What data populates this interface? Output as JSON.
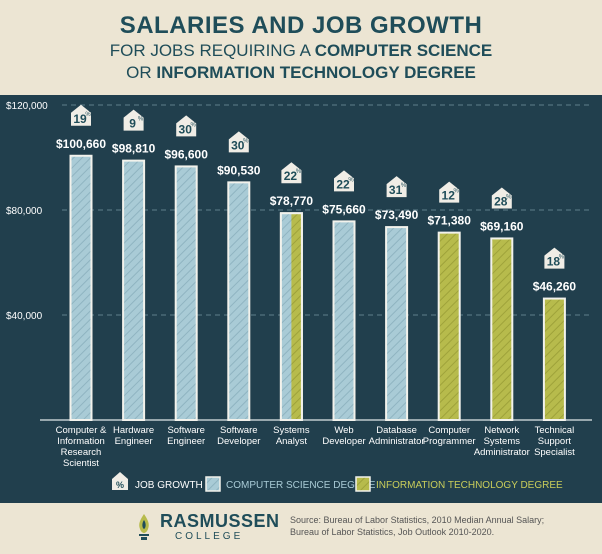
{
  "header": {
    "title": "SALARIES AND JOB GROWTH",
    "subtitle_line1_normal": "FOR JOBS REQUIRING A ",
    "subtitle_line1_bold": "COMPUTER SCIENCE",
    "subtitle_line2_normal": "OR ",
    "subtitle_line2_bold": "INFORMATION TECHNOLOGY DEGREE"
  },
  "colors": {
    "background_panel": "#213f4d",
    "cs_fill": "#a9cbd6",
    "it_fill": "#b7bb4c",
    "bar_outline": "#f2f2ec",
    "badge_fill": "#f0ede6",
    "text_light": "#ffffff",
    "title": "#1f4d59"
  },
  "chart_data": {
    "type": "bar",
    "ylim": [
      0,
      120000
    ],
    "yticks": [
      40000,
      80000,
      120000
    ],
    "ytick_labels": [
      "$40,000",
      "$80,000",
      "$120,000"
    ],
    "grid": true,
    "categories": [
      [
        "Computer &",
        "Information",
        "Research",
        "Scientist"
      ],
      [
        "Hardware",
        "Engineer"
      ],
      [
        "Software",
        "Engineer"
      ],
      [
        "Software",
        "Developer"
      ],
      [
        "Systems",
        "Analyst"
      ],
      [
        "Web",
        "Developer"
      ],
      [
        "Database",
        "Administrator"
      ],
      [
        "Computer",
        "Programmer"
      ],
      [
        "Network",
        "Systems",
        "Administrator"
      ],
      [
        "Technical",
        "Support",
        "Specialist"
      ]
    ],
    "values": [
      100660,
      98810,
      96600,
      90530,
      78770,
      75660,
      73490,
      71380,
      69160,
      46260
    ],
    "value_labels": [
      "$100,660",
      "$98,810",
      "$96,600",
      "$90,530",
      "$78,770",
      "$75,660",
      "$73,490",
      "$71,380",
      "$69,160",
      "$46,260"
    ],
    "job_growth_percent": [
      19,
      9,
      30,
      30,
      22,
      22,
      31,
      12,
      28,
      18
    ],
    "degree": [
      "cs",
      "cs",
      "cs",
      "cs",
      "both",
      "cs",
      "cs",
      "it",
      "it",
      "it"
    ],
    "legend": [
      {
        "key": "growth",
        "label": "JOB GROWTH",
        "symbol": "%"
      },
      {
        "key": "cs",
        "label": "COMPUTER SCIENCE DEGREE"
      },
      {
        "key": "it",
        "label": "INFORMATION TECHNOLOGY DEGREE"
      }
    ]
  },
  "footer": {
    "logo_main": "RASMUSSEN",
    "logo_sub": "COLLEGE",
    "source_line1": "Source: Bureau of Labor Statistics, 2010 Median Annual Salary;",
    "source_line2": "Bureau of Labor Statistics, Job Outlook 2010-2020."
  }
}
